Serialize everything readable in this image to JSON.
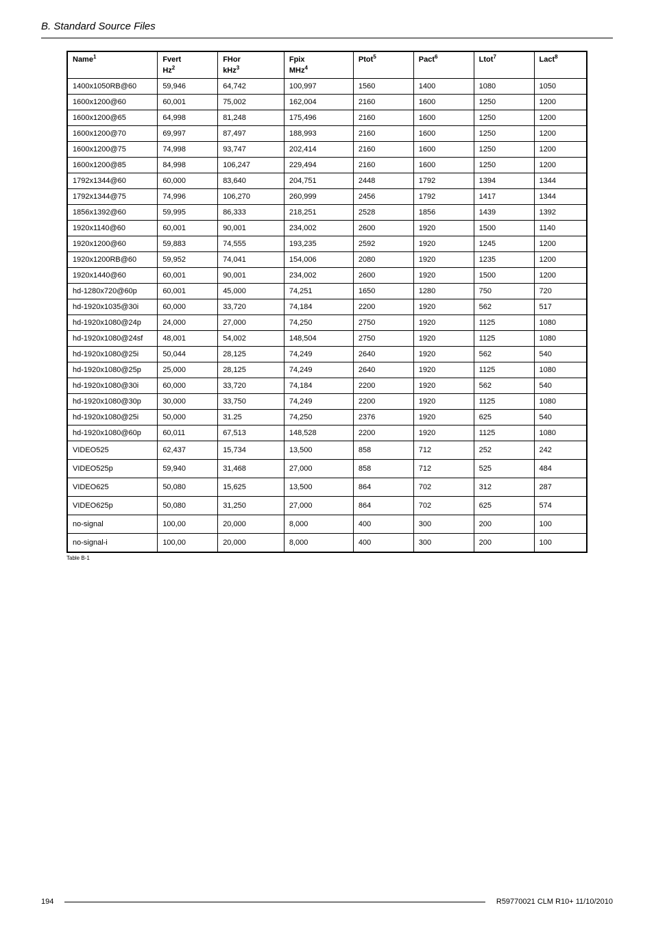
{
  "header": {
    "title": "B. Standard Source Files"
  },
  "table": {
    "columns_row1": [
      "Name",
      "Fvert",
      "FHor",
      "Fpix",
      "Ptot",
      "Pact",
      "Ltot",
      "Lact"
    ],
    "columns_row1_sup": [
      "1",
      "",
      "",
      "",
      "5",
      "6",
      "7",
      "8"
    ],
    "columns_row2": [
      "",
      "Hz",
      "kHz",
      "MHz",
      "",
      "",
      "",
      ""
    ],
    "columns_row2_sup": [
      "",
      "2",
      "3",
      "4",
      "",
      "",
      "",
      ""
    ],
    "rows": [
      [
        "1400x1050RB@60",
        "59,946",
        "64,742",
        "100,997",
        "1560",
        "1400",
        "1080",
        "1050"
      ],
      [
        "1600x1200@60",
        "60,001",
        "75,002",
        "162,004",
        "2160",
        "1600",
        "1250",
        "1200"
      ],
      [
        "1600x1200@65",
        "64,998",
        "81,248",
        "175,496",
        "2160",
        "1600",
        "1250",
        "1200"
      ],
      [
        "1600x1200@70",
        "69,997",
        "87,497",
        "188,993",
        "2160",
        "1600",
        "1250",
        "1200"
      ],
      [
        "1600x1200@75",
        "74,998",
        "93,747",
        "202,414",
        "2160",
        "1600",
        "1250",
        "1200"
      ],
      [
        "1600x1200@85",
        "84,998",
        "106,247",
        "229,494",
        "2160",
        "1600",
        "1250",
        "1200"
      ],
      [
        "1792x1344@60",
        "60,000",
        "83,640",
        "204,751",
        "2448",
        "1792",
        "1394",
        "1344"
      ],
      [
        "1792x1344@75",
        "74,996",
        "106,270",
        "260,999",
        "2456",
        "1792",
        "1417",
        "1344"
      ],
      [
        "1856x1392@60",
        "59,995",
        "86,333",
        "218,251",
        "2528",
        "1856",
        "1439",
        "1392"
      ],
      [
        "1920x1140@60",
        "60,001",
        "90,001",
        "234,002",
        "2600",
        "1920",
        "1500",
        "1140"
      ],
      [
        "1920x1200@60",
        "59,883",
        "74,555",
        "193,235",
        "2592",
        "1920",
        "1245",
        "1200"
      ],
      [
        "1920x1200RB@60",
        "59,952",
        "74,041",
        "154,006",
        "2080",
        "1920",
        "1235",
        "1200"
      ],
      [
        "1920x1440@60",
        "60,001",
        "90,001",
        "234,002",
        "2600",
        "1920",
        "1500",
        "1200"
      ],
      [
        "hd-1280x720@60p",
        "60,001",
        "45,000",
        "74,251",
        "1650",
        "1280",
        "750",
        "720"
      ],
      [
        "hd-1920x1035@30i",
        "60,000",
        "33,720",
        "74,184",
        "2200",
        "1920",
        "562",
        "517"
      ],
      [
        "hd-1920x1080@24p",
        "24,000",
        "27,000",
        "74,250",
        "2750",
        "1920",
        "1125",
        "1080"
      ],
      [
        "hd-1920x1080@24sf",
        "48,001",
        "54,002",
        "148,504",
        "2750",
        "1920",
        "1125",
        "1080"
      ],
      [
        "hd-1920x1080@25i",
        "50,044",
        "28,125",
        "74,249",
        "2640",
        "1920",
        "562",
        "540"
      ],
      [
        "hd-1920x1080@25p",
        "25,000",
        "28,125",
        "74,249",
        "2640",
        "1920",
        "1125",
        "1080"
      ],
      [
        "hd-1920x1080@30i",
        "60,000",
        "33,720",
        "74,184",
        "2200",
        "1920",
        "562",
        "540"
      ],
      [
        "hd-1920x1080@30p",
        "30,000",
        "33,750",
        "74,249",
        "2200",
        "1920",
        "1125",
        "1080"
      ],
      [
        "hd-1920x1080@25i",
        "50,000",
        "31.25",
        "74,250",
        "2376",
        "1920",
        "625",
        "540"
      ],
      [
        "hd-1920x1080@60p",
        "60,011",
        "67,513",
        "148,528",
        "2200",
        "1920",
        "1125",
        "1080"
      ],
      [
        "VIDEO525",
        "62,437",
        "15,734",
        "13,500",
        "858",
        "712",
        "252",
        "242"
      ],
      [
        "VIDEO525p",
        "59,940",
        "31,468",
        "27,000",
        "858",
        "712",
        "525",
        "484"
      ],
      [
        "VIDEO625",
        "50,080",
        "15,625",
        "13,500",
        "864",
        "702",
        "312",
        "287"
      ],
      [
        "VIDEO625p",
        "50,080",
        "31,250",
        "27,000",
        "864",
        "702",
        "625",
        "574"
      ],
      [
        "no-signal",
        "100,00",
        "20,000",
        "8,000",
        "400",
        "300",
        "200",
        "100"
      ],
      [
        "no-signal-i",
        "100,00",
        "20,000",
        "8,000",
        "400",
        "300",
        "200",
        "100"
      ]
    ],
    "tall_row_indices": [
      23,
      24,
      25,
      26,
      27,
      28
    ]
  },
  "caption": "Table B-1",
  "footer": {
    "page": "194",
    "docid": "R59770021  CLM R10+  11/10/2010"
  }
}
